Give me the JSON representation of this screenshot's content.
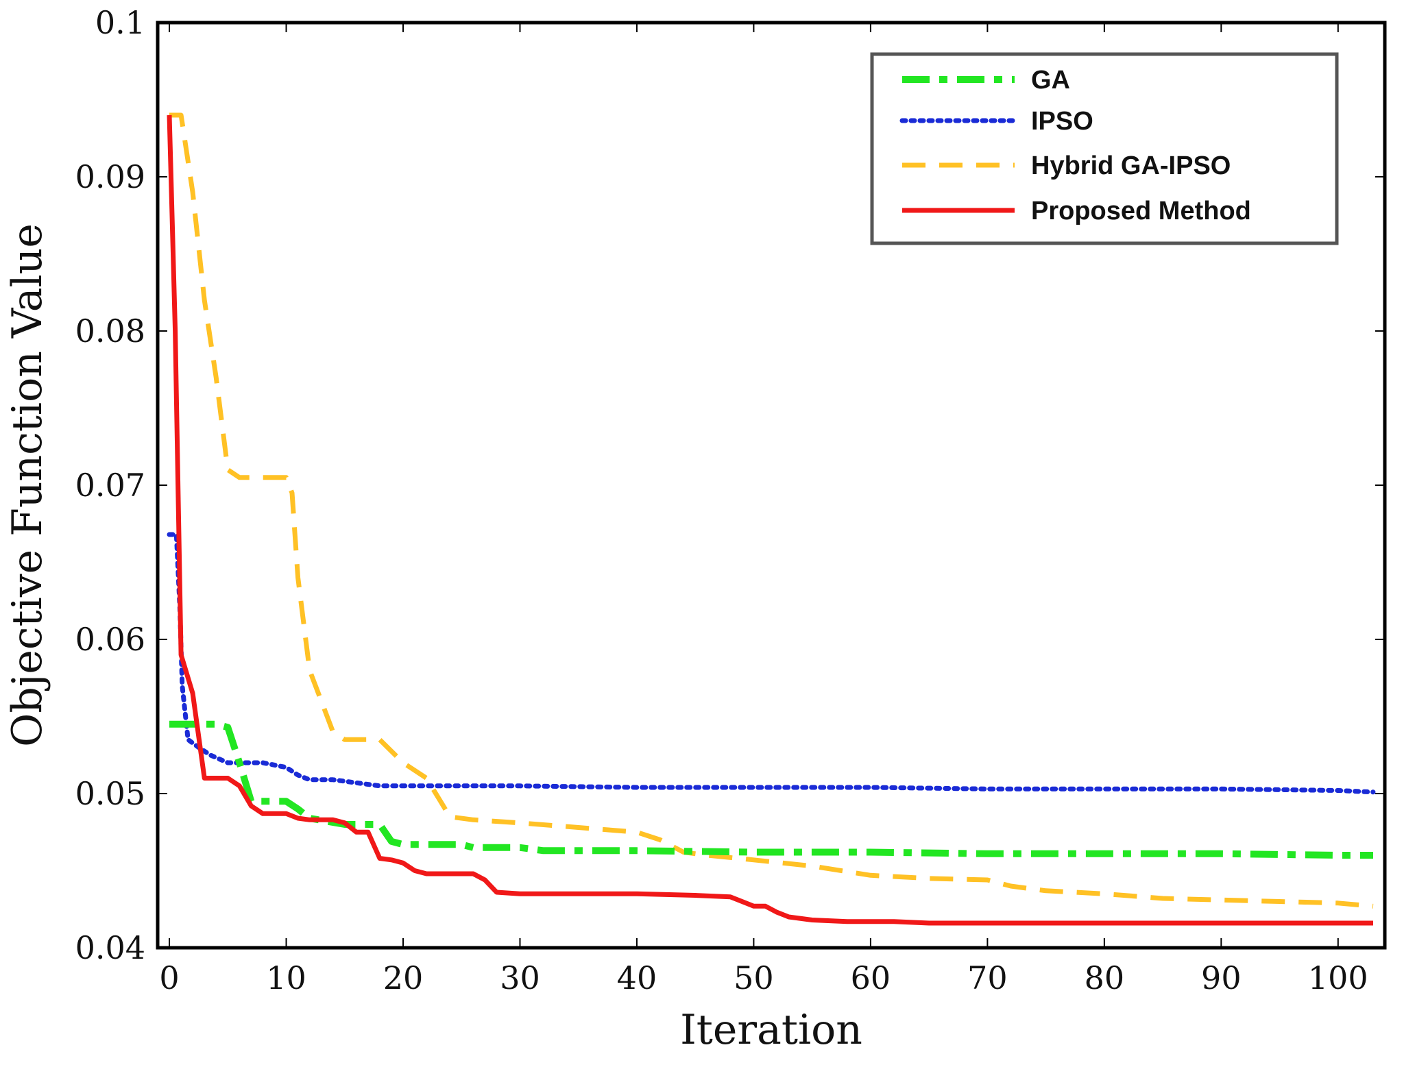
{
  "chart_data": {
    "type": "line",
    "title": "",
    "xlabel": "Iteration",
    "ylabel": "Objective Function Value",
    "xlim": [
      -1,
      104
    ],
    "ylim": [
      0.04,
      0.1
    ],
    "xticks": [
      0,
      10,
      20,
      30,
      40,
      50,
      60,
      70,
      80,
      90,
      100
    ],
    "xtick_labels": [
      "0",
      "10",
      "20",
      "30",
      "40",
      "50",
      "60",
      "70",
      "80",
      "90",
      "100"
    ],
    "yticks": [
      0.04,
      0.05,
      0.06,
      0.07,
      0.08,
      0.09,
      0.1
    ],
    "ytick_labels": [
      "0.04",
      "0.05",
      "0.06",
      "0.07",
      "0.08",
      "0.09",
      "0.1"
    ],
    "grid": false,
    "legend_position": "top-right",
    "series": [
      {
        "name": "GA",
        "color": "#22e622",
        "style": "dashdot",
        "x": [
          0,
          1,
          4,
          5,
          6,
          7,
          10,
          11,
          12,
          15,
          18,
          19,
          20,
          25,
          26,
          30,
          32,
          40,
          50,
          60,
          70,
          80,
          90,
          100,
          103
        ],
        "y": [
          0.0545,
          0.0545,
          0.0545,
          0.0543,
          0.052,
          0.0495,
          0.0495,
          0.049,
          0.0484,
          0.048,
          0.048,
          0.0469,
          0.0467,
          0.0467,
          0.0465,
          0.0465,
          0.0463,
          0.0463,
          0.0462,
          0.0462,
          0.0461,
          0.0461,
          0.0461,
          0.046,
          0.046
        ]
      },
      {
        "name": "IPSO",
        "color": "#1a2bd6",
        "style": "dotted",
        "x": [
          0,
          0.6,
          0.9,
          1.1,
          1.6,
          2.5,
          3.5,
          5,
          6,
          8,
          10,
          11,
          12,
          14,
          16,
          18,
          20,
          30,
          40,
          50,
          60,
          70,
          80,
          90,
          100,
          103
        ],
        "y": [
          0.0668,
          0.0668,
          0.062,
          0.057,
          0.0535,
          0.053,
          0.0525,
          0.052,
          0.052,
          0.052,
          0.0517,
          0.0512,
          0.0509,
          0.0509,
          0.0507,
          0.0505,
          0.0505,
          0.0505,
          0.0504,
          0.0504,
          0.0504,
          0.0503,
          0.0503,
          0.0503,
          0.0502,
          0.0501
        ]
      },
      {
        "name": "Hybrid GA-IPSO",
        "color": "#ffc125",
        "style": "dashed",
        "x": [
          0,
          1,
          2,
          3,
          4,
          5,
          6,
          7,
          8,
          9,
          10,
          10.5,
          11,
          12,
          13,
          14,
          15,
          17,
          18,
          20,
          22,
          24,
          26,
          30,
          35,
          40,
          42,
          44,
          46,
          50,
          55,
          60,
          65,
          70,
          72,
          75,
          80,
          85,
          90,
          95,
          100,
          103
        ],
        "y": [
          0.094,
          0.094,
          0.089,
          0.082,
          0.077,
          0.071,
          0.0705,
          0.0705,
          0.0705,
          0.0705,
          0.0705,
          0.0695,
          0.064,
          0.058,
          0.056,
          0.054,
          0.0535,
          0.0535,
          0.0535,
          0.052,
          0.051,
          0.0485,
          0.0483,
          0.0481,
          0.0478,
          0.0475,
          0.047,
          0.0462,
          0.046,
          0.0457,
          0.0453,
          0.0447,
          0.0445,
          0.0444,
          0.044,
          0.0437,
          0.0435,
          0.0432,
          0.0431,
          0.043,
          0.0429,
          0.0427
        ]
      },
      {
        "name": "Proposed Method",
        "color": "#f01818",
        "style": "solid",
        "x": [
          0,
          0.5,
          1,
          2,
          3,
          4,
          5,
          6,
          7,
          8,
          9,
          10,
          11,
          12,
          14,
          15,
          16,
          17,
          18,
          19,
          20,
          21,
          22,
          23,
          26,
          27,
          28,
          30,
          35,
          40,
          45,
          48,
          49,
          50,
          51,
          52,
          53,
          55,
          58,
          62,
          65,
          70,
          80,
          90,
          100,
          103
        ],
        "y": [
          0.094,
          0.08,
          0.059,
          0.0565,
          0.051,
          0.051,
          0.051,
          0.0505,
          0.0492,
          0.0487,
          0.0487,
          0.0487,
          0.0484,
          0.0483,
          0.0483,
          0.0481,
          0.0475,
          0.0475,
          0.0458,
          0.0457,
          0.0455,
          0.045,
          0.0448,
          0.0448,
          0.0448,
          0.0444,
          0.0436,
          0.0435,
          0.0435,
          0.0435,
          0.0434,
          0.0433,
          0.043,
          0.0427,
          0.0427,
          0.0423,
          0.042,
          0.0418,
          0.0417,
          0.0417,
          0.0416,
          0.0416,
          0.0416,
          0.0416,
          0.0416,
          0.0416
        ]
      }
    ]
  }
}
